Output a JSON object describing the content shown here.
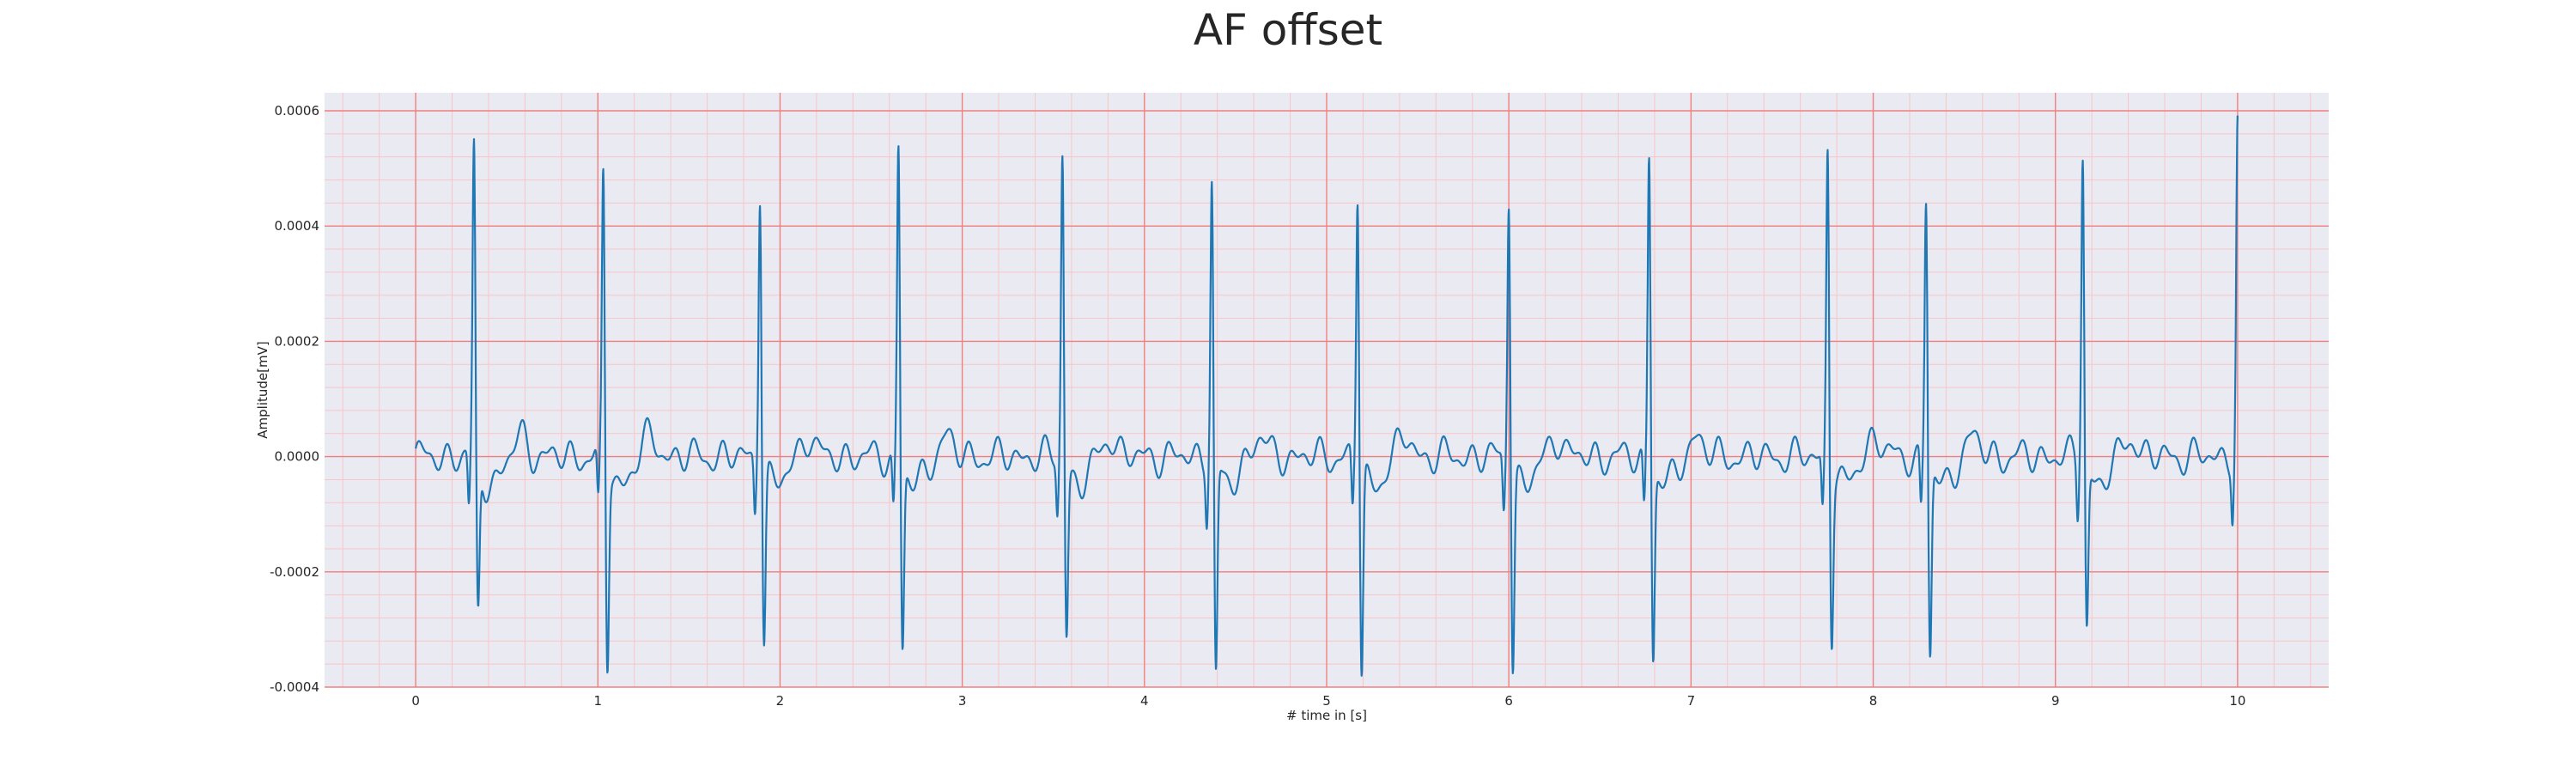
{
  "chart_data": {
    "type": "line",
    "title": "AF offset",
    "xlabel": "# time in [s]",
    "ylabel": "Amplitude[mV]",
    "xlim": [
      -0.5,
      10.5
    ],
    "ylim": [
      -0.0004,
      0.0006
    ],
    "x_ticks": [
      "0",
      "1",
      "2",
      "3",
      "4",
      "5",
      "6",
      "7",
      "8",
      "9",
      "10"
    ],
    "y_ticks": [
      "-0.0004",
      "-0.0002",
      "0.0000",
      "0.0002",
      "0.0004",
      "0.0006"
    ],
    "grid": true,
    "line_color": "#1f77b4",
    "major_grid_color": "#f08080",
    "minor_grid_color": "#f7c6c6",
    "background_color": "#eaeaf2",
    "series": [
      {
        "beats": [
          {
            "t": 0.32,
            "r": 0.00055,
            "s": -0.00026
          },
          {
            "t": 1.03,
            "r": 0.00051,
            "s": -0.00034
          },
          {
            "t": 1.89,
            "r": 0.00049,
            "s": -0.0003
          },
          {
            "t": 2.65,
            "r": 0.00056,
            "s": -0.00032
          },
          {
            "t": 3.55,
            "r": 0.00055,
            "s": -0.00029
          },
          {
            "t": 4.37,
            "r": 0.0005,
            "s": -0.00037
          },
          {
            "t": 5.17,
            "r": 0.00048,
            "s": -0.00036
          },
          {
            "t": 6.0,
            "r": 0.00048,
            "s": -0.00034
          },
          {
            "t": 6.77,
            "r": 0.00055,
            "s": -0.00033
          },
          {
            "t": 7.75,
            "r": 0.00056,
            "s": -0.00029
          },
          {
            "t": 8.29,
            "r": 0.00047,
            "s": -0.00033
          },
          {
            "t": 9.15,
            "r": 0.00055,
            "s": -0.00028
          },
          {
            "t": 10.0,
            "r": 0.00058,
            "s": -6e-05
          }
        ]
      }
    ]
  }
}
